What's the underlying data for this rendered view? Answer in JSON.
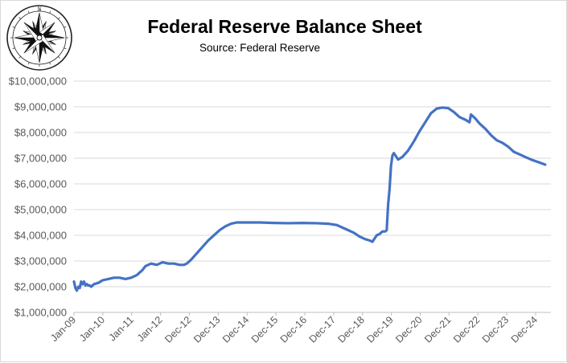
{
  "logo": {
    "name": "compass-rose-logo",
    "letter": "N"
  },
  "chart_data": {
    "type": "line",
    "title": "Federal Reserve Balance Sheet",
    "subtitle": "Source: Federal Reserve",
    "xlabel": "",
    "ylabel": "",
    "ylim": [
      1000000,
      10000000
    ],
    "ytick_values": [
      1000000,
      2000000,
      3000000,
      4000000,
      5000000,
      6000000,
      7000000,
      8000000,
      9000000,
      10000000
    ],
    "ytick_labels": [
      "$1,000,000",
      "$2,000,000",
      "$3,000,000",
      "$4,000,000",
      "$5,000,000",
      "$6,000,000",
      "$7,000,000",
      "$8,000,000",
      "$9,000,000",
      "$10,000,000"
    ],
    "xtick_labels": [
      "Jan-09",
      "Jan-10",
      "Jan-11",
      "Jan-12",
      "Dec-12",
      "Dec-13",
      "Dec-14",
      "Dec-15",
      "Dec-16",
      "Dec-17",
      "Dec-18",
      "Dec-19",
      "Dec-20",
      "Dec-21",
      "Dec-22",
      "Dec-23",
      "Dec-24"
    ],
    "x_range": [
      2009.0,
      2025.7
    ],
    "grid": "horizontal",
    "legend": "none",
    "series_color": "#4472c4",
    "series": [
      {
        "x": [
          2009.0,
          2009.05,
          2009.1,
          2009.15,
          2009.2,
          2009.25,
          2009.3,
          2009.35,
          2009.4,
          2009.45,
          2009.5,
          2009.55,
          2009.6,
          2009.7,
          2009.85,
          2010.0,
          2010.2,
          2010.4,
          2010.6,
          2010.8,
          2011.0,
          2011.2,
          2011.4,
          2011.5,
          2011.7,
          2011.9,
          2012.0,
          2012.1,
          2012.3,
          2012.5,
          2012.7,
          2012.85,
          2012.95,
          2013.1,
          2013.3,
          2013.5,
          2013.7,
          2013.9,
          2014.1,
          2014.3,
          2014.5,
          2014.7,
          2014.9,
          2015.0,
          2015.5,
          2016.0,
          2016.5,
          2017.0,
          2017.5,
          2017.9,
          2018.2,
          2018.5,
          2018.8,
          2019.0,
          2019.2,
          2019.35,
          2019.45,
          2019.6,
          2019.7,
          2019.8,
          2019.85,
          2019.9,
          2019.95,
          2020.0,
          2020.05,
          2020.1,
          2020.15,
          2020.2,
          2020.35,
          2020.5,
          2020.7,
          2020.9,
          2021.1,
          2021.3,
          2021.5,
          2021.7,
          2021.9,
          2022.1,
          2022.3,
          2022.5,
          2022.7,
          2022.85,
          2022.9,
          2022.95,
          2023.05,
          2023.2,
          2023.4,
          2023.6,
          2023.8,
          2024.0,
          2024.2,
          2024.4,
          2024.6,
          2024.8,
          2025.0,
          2025.25,
          2025.5
        ],
        "values": [
          2200000,
          1950000,
          1850000,
          2000000,
          1950000,
          2200000,
          2100000,
          2200000,
          2050000,
          2100000,
          2050000,
          2050000,
          2000000,
          2100000,
          2150000,
          2250000,
          2300000,
          2350000,
          2350000,
          2300000,
          2350000,
          2450000,
          2650000,
          2800000,
          2900000,
          2850000,
          2900000,
          2950000,
          2900000,
          2900000,
          2850000,
          2850000,
          2900000,
          3050000,
          3300000,
          3550000,
          3800000,
          4000000,
          4200000,
          4350000,
          4450000,
          4500000,
          4500000,
          4500000,
          4500000,
          4480000,
          4470000,
          4480000,
          4470000,
          4450000,
          4400000,
          4250000,
          4100000,
          3950000,
          3850000,
          3800000,
          3750000,
          4000000,
          4050000,
          4150000,
          4150000,
          4150000,
          4200000,
          5200000,
          5800000,
          6700000,
          7100000,
          7200000,
          6950000,
          7050000,
          7300000,
          7650000,
          8050000,
          8400000,
          8750000,
          8930000,
          8970000,
          8950000,
          8800000,
          8600000,
          8500000,
          8400000,
          8700000,
          8650000,
          8550000,
          8350000,
          8150000,
          7900000,
          7700000,
          7600000,
          7450000,
          7250000,
          7150000,
          7050000,
          6950000,
          6850000,
          6750000
        ]
      }
    ]
  }
}
